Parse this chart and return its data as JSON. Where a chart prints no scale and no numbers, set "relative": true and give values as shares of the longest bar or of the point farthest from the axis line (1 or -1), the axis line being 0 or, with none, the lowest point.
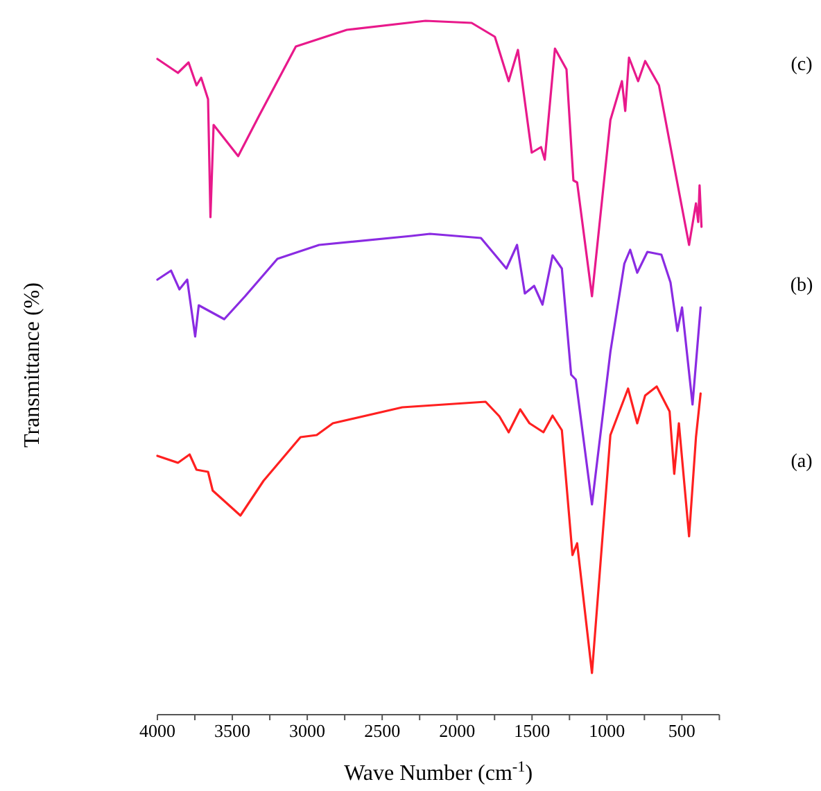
{
  "chart_data": {
    "type": "line",
    "relative": true,
    "xlabel": "Wave Number (cm$^{-1}$)",
    "ylabel": "Transmittance (%)",
    "tick_labels": "x",
    "xlim": [
      4000,
      250
    ],
    "xticks": [
      4000,
      {
        "value": 3750,
        "label": null
      },
      3500,
      {
        "value": 3250,
        "label": null
      },
      3000,
      {
        "value": 2750,
        "label": null
      },
      2500,
      {
        "value": 2250,
        "label": null
      },
      2000,
      {
        "value": 1750,
        "label": null
      },
      1500,
      {
        "value": 1250,
        "label": null
      },
      1000,
      {
        "value": 750,
        "label": null
      },
      500,
      {
        "value": 250,
        "label": null
      }
    ],
    "series": [
      {
        "name": "(a)",
        "color": "#ff2020",
        "x": [
          4000,
          3863,
          3785,
          3739,
          3662,
          3631,
          3446,
          3292,
          3045,
          2937,
          2829,
          2366,
          1810,
          1718,
          1656,
          1579,
          1517,
          1424,
          1363,
          1301,
          1230,
          1199,
          1100,
          977,
          859,
          798,
          745,
          668,
          582,
          551,
          520,
          452,
          406,
          375
        ],
        "values": [
          0.373,
          0.363,
          0.375,
          0.353,
          0.35,
          0.323,
          0.287,
          0.337,
          0.4,
          0.403,
          0.42,
          0.443,
          0.451,
          0.43,
          0.407,
          0.44,
          0.42,
          0.407,
          0.431,
          0.41,
          0.23,
          0.247,
          0.06,
          0.403,
          0.47,
          0.42,
          0.46,
          0.473,
          0.437,
          0.347,
          0.42,
          0.257,
          0.4,
          0.463
        ]
      },
      {
        "name": "(b)",
        "color": "#8a2be2",
        "x": [
          4000,
          3909,
          3853,
          3801,
          3748,
          3724,
          3554,
          3415,
          3199,
          2921,
          2304,
          2181,
          1841,
          1748,
          1671,
          1600,
          1548,
          1486,
          1430,
          1363,
          1301,
          1239,
          1208,
          1100,
          977,
          884,
          845,
          798,
          730,
          637,
          576,
          530,
          499,
          429,
          375
        ],
        "values": [
          0.627,
          0.64,
          0.613,
          0.627,
          0.545,
          0.59,
          0.57,
          0.603,
          0.657,
          0.677,
          0.69,
          0.693,
          0.687,
          0.663,
          0.643,
          0.677,
          0.607,
          0.618,
          0.591,
          0.662,
          0.643,
          0.49,
          0.483,
          0.303,
          0.523,
          0.65,
          0.67,
          0.637,
          0.667,
          0.663,
          0.623,
          0.553,
          0.587,
          0.447,
          0.587
        ]
      },
      {
        "name": "(c)",
        "color": "#e8198b",
        "x": [
          4000,
          3863,
          3792,
          3739,
          3708,
          3662,
          3646,
          3625,
          3461,
          3322,
          3076,
          2736,
          2211,
          1903,
          1748,
          1656,
          1594,
          1502,
          1440,
          1415,
          1347,
          1270,
          1224,
          1199,
          1100,
          977,
          900,
          878,
          853,
          792,
          745,
          653,
          545,
          452,
          406,
          391,
          382,
          369
        ],
        "values": [
          0.945,
          0.925,
          0.94,
          0.907,
          0.918,
          0.887,
          0.717,
          0.85,
          0.805,
          0.863,
          0.963,
          0.987,
          1.0,
          0.997,
          0.977,
          0.913,
          0.958,
          0.81,
          0.818,
          0.8,
          0.96,
          0.93,
          0.77,
          0.767,
          0.603,
          0.857,
          0.913,
          0.87,
          0.947,
          0.913,
          0.942,
          0.907,
          0.783,
          0.677,
          0.737,
          0.71,
          0.763,
          0.703
        ]
      }
    ]
  }
}
